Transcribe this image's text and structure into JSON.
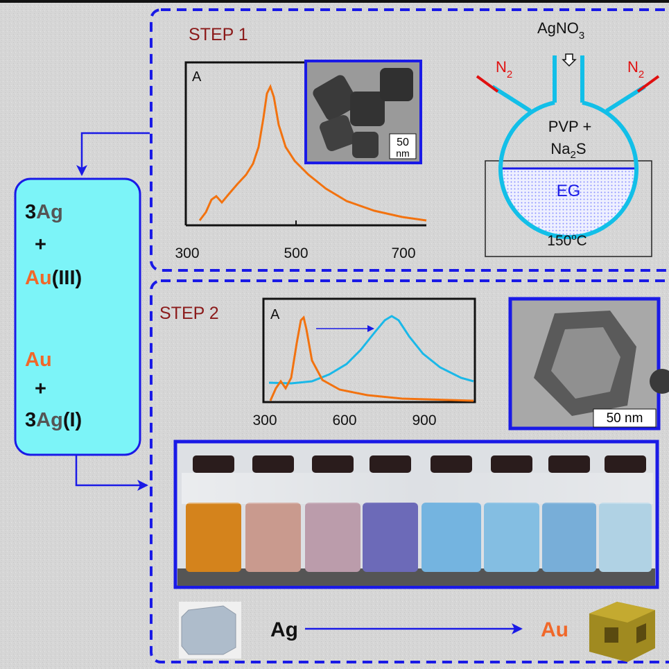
{
  "step1": {
    "label": "STEP 1",
    "spectrum": {
      "y_label": "A",
      "x_ticks": [
        300,
        500,
        700
      ]
    },
    "tem_scale": [
      "50",
      "nm"
    ],
    "apparatus": {
      "precursor": [
        "AgNO",
        "3"
      ],
      "gas_left": [
        "N",
        "2"
      ],
      "gas_right": [
        "N",
        "2"
      ],
      "reagents": [
        "PVP +",
        "Na",
        "2",
        "S"
      ],
      "solvent": "EG",
      "temperature": [
        "150",
        "o",
        "C"
      ]
    }
  },
  "step2": {
    "label": "STEP 2",
    "spectrum": {
      "y_label": "A",
      "x_ticks": [
        300,
        600,
        900
      ]
    },
    "tem_scale": "50 nm"
  },
  "reaction": {
    "line1": [
      "3",
      "Ag"
    ],
    "line2": "+",
    "line3": [
      "Au",
      "(III)"
    ],
    "line4": "Au",
    "line5": "+",
    "line6": [
      "3",
      "Ag",
      "(I)"
    ]
  },
  "bottom": {
    "start": "Ag",
    "end": "Au"
  }
}
